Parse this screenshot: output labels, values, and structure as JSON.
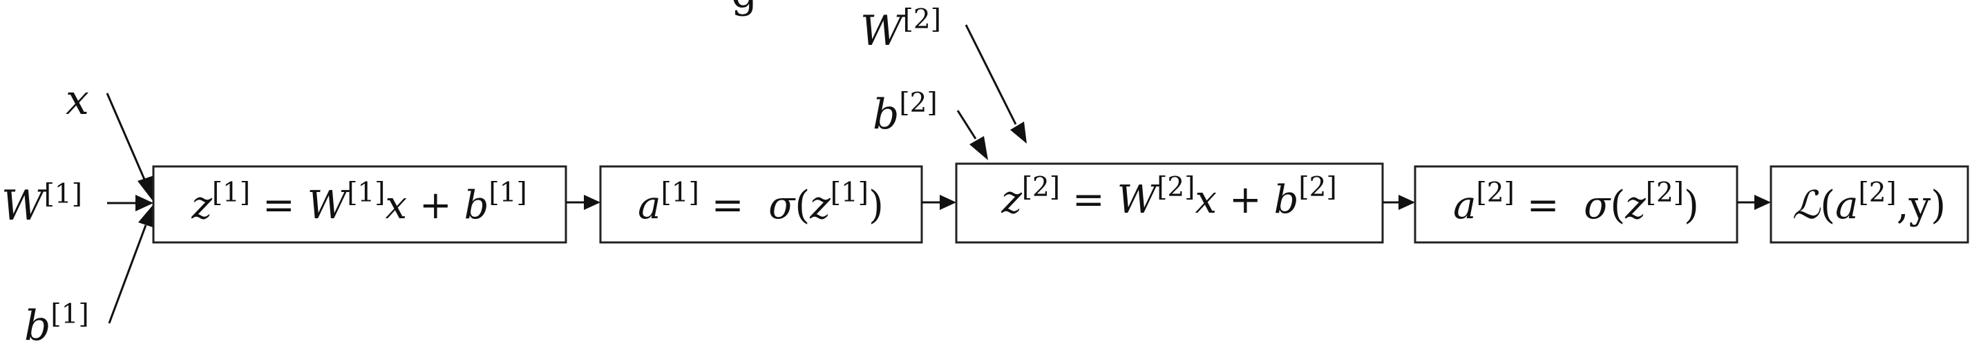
{
  "diagram": {
    "title_fragment": "g",
    "inputs": {
      "x": "x",
      "w1": {
        "base": "W",
        "sup": "[1]"
      },
      "b1": {
        "base": "b",
        "sup": "[1]"
      },
      "w2": {
        "base": "W",
        "sup": "[2]"
      },
      "b2": {
        "base": "b",
        "sup": "[2]"
      }
    },
    "boxes": {
      "z1": {
        "lhs": "z",
        "lhs_sup": "[1]",
        "eq": " = ",
        "w": "W",
        "w_sup": "[1]",
        "x": "x",
        "plus": " + ",
        "b": "b",
        "b_sup": "[1]"
      },
      "a1": {
        "lhs": "a",
        "lhs_sup": "[1]",
        "eq": " =  ",
        "sigma": "σ",
        "open": "(",
        "z": "z",
        "z_sup": "[1]",
        "close": ")"
      },
      "z2": {
        "lhs": "z",
        "lhs_sup": "[2]",
        "eq": " = ",
        "w": "W",
        "w_sup": "[2]",
        "x": "x",
        "plus": " + ",
        "b": "b",
        "b_sup": "[2]"
      },
      "a2": {
        "lhs": "a",
        "lhs_sup": "[2]",
        "eq": " =  ",
        "sigma": "σ",
        "open": "(",
        "z": "z",
        "z_sup": "[2]",
        "close": ")"
      },
      "loss": {
        "fn": "ℒ",
        "open": "(",
        "a": "a",
        "a_sup": "[2]",
        "comma": ",",
        "y": "y",
        "close": ")"
      }
    }
  }
}
